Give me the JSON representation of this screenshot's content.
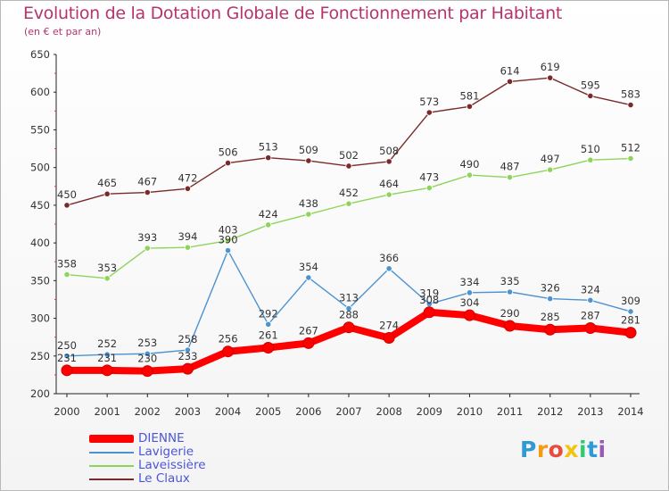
{
  "header": {
    "title": "Evolution de la Dotation Globale de Fonctionnement par Habitant",
    "subtitle": "(en € et par an)"
  },
  "logo": {
    "letters": [
      "P",
      "r",
      "o",
      "x",
      "i",
      "t",
      "i"
    ],
    "colors": [
      "#2e9ad6",
      "#f39c12",
      "#e74c3c",
      "#f1c40f",
      "#2ecc71",
      "#2e9ad6",
      "#9b59b6"
    ]
  },
  "chart_data": {
    "type": "line",
    "x": [
      "2000",
      "2001",
      "2002",
      "2003",
      "2004",
      "2005",
      "2006",
      "2007",
      "2008",
      "2009",
      "2010",
      "2011",
      "2012",
      "2013",
      "2014"
    ],
    "ylim": [
      200,
      650
    ],
    "yticks": [
      "200",
      "250",
      "300",
      "350",
      "400",
      "450",
      "500",
      "550",
      "600",
      "650"
    ],
    "grid": false,
    "legend_position": "bottom-left",
    "series": [
      {
        "name": "Le Claux",
        "color": "#7a2a2a",
        "values": [
          450,
          465,
          467,
          472,
          506,
          513,
          509,
          502,
          508,
          573,
          581,
          614,
          619,
          595,
          583
        ],
        "labels": [
          "450",
          "465",
          "467",
          "472",
          "506",
          "513",
          "509",
          "502",
          "508",
          "573",
          "581",
          "614",
          "619",
          "595",
          "583"
        ]
      },
      {
        "name": "Laveissière",
        "color": "#8fd45a",
        "values": [
          358,
          353,
          393,
          394,
          403,
          424,
          438,
          452,
          464,
          473,
          490,
          487,
          497,
          510,
          512
        ],
        "labels": [
          "358",
          "353",
          "393",
          "394",
          "403",
          "424",
          "438",
          "452",
          "464",
          "473",
          "490",
          "487",
          "497",
          "510",
          "512"
        ]
      },
      {
        "name": "Lavigerie",
        "color": "#4d93d0",
        "values": [
          250,
          252,
          253,
          258,
          390,
          292,
          354,
          313,
          366,
          319,
          334,
          335,
          326,
          324,
          309
        ],
        "labels": [
          "250",
          "252",
          "253",
          "258",
          "390",
          "292",
          "354",
          "313",
          "366",
          "319",
          "334",
          "335",
          "326",
          "324",
          "309"
        ]
      },
      {
        "name": "DIENNE",
        "color": "#ff0000",
        "values": [
          231,
          231,
          230,
          233,
          256,
          261,
          267,
          288,
          274,
          308,
          304,
          290,
          285,
          287,
          281
        ],
        "labels": [
          "231",
          "231",
          "230",
          "233",
          "256",
          "261",
          "267",
          "288",
          "274",
          "308",
          "304",
          "290",
          "285",
          "287",
          "281"
        ]
      }
    ]
  },
  "legend": {
    "items": [
      {
        "name": "DIENNE",
        "color": "#ff0000"
      },
      {
        "name": "Lavigerie",
        "color": "#4d93d0"
      },
      {
        "name": "Laveissière",
        "color": "#8fd45a"
      },
      {
        "name": "Le Claux",
        "color": "#7a2a2a"
      }
    ]
  }
}
